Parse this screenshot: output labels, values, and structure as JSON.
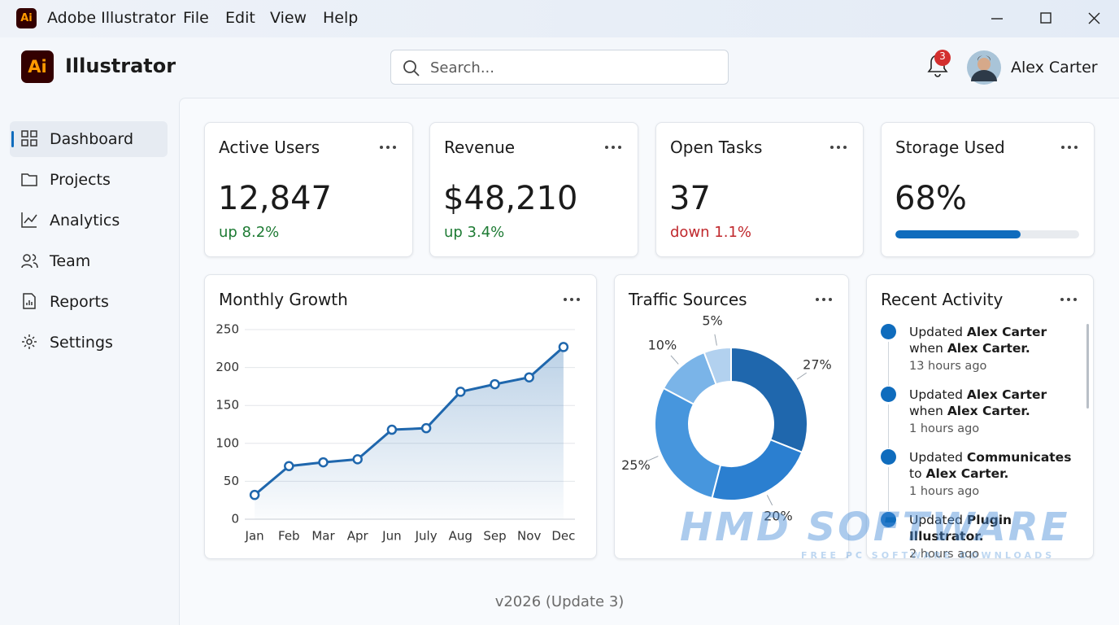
{
  "titlebar": {
    "app": "Adobe Illustrator",
    "menu": [
      "File",
      "Edit",
      "View",
      "Help"
    ]
  },
  "header": {
    "brand": "Illustrator",
    "search_placeholder": "Search...",
    "notifications": "3",
    "user": "Alex Carter"
  },
  "nav": [
    "Dashboard",
    "Projects",
    "Analytics",
    "Team",
    "Reports",
    "Settings"
  ],
  "stats": [
    {
      "title": "Active Users",
      "value": "12,847",
      "change": "up 8.2%",
      "change_color": "#1e7b34"
    },
    {
      "title": "Revenue",
      "value": "$48,210",
      "change": "up 3.4%",
      "change_color": "#1e7b34"
    },
    {
      "title": "Open Tasks",
      "value": "37",
      "change": "down 1.1%",
      "change_color": "#c0282d"
    },
    {
      "title": "Storage Used",
      "value": {
        "value": 68,
        "label": "68%"
      },
      "bar_color": "#0f6cbd"
    }
  ],
  "growth_chart": {
    "chart_data": {
      "type": "line",
      "title": "Monthly Growth",
      "categories": [
        "Jan",
        "Feb",
        "Mar",
        "Apr",
        "Jun",
        "July",
        "Aug",
        "Sep",
        "Nov",
        "Dec"
      ],
      "values": [
        32,
        70,
        75,
        79,
        118,
        120,
        168,
        178,
        187,
        227
      ],
      "color": "#1f67ad",
      "area": true,
      "ylim": [
        0,
        250
      ],
      "yticks": [
        0,
        50,
        100,
        150,
        200,
        250
      ],
      "grid": true
    }
  },
  "traffic_chart": {
    "chart_data": {
      "type": "donut",
      "title": "Traffic Sources",
      "values": [
        27,
        20,
        25,
        10,
        5
      ],
      "value_labels": [
        "27%",
        "20%",
        "25%",
        "10%",
        "5%"
      ],
      "colors": [
        "#1f67ad",
        "#2b7fd0",
        "#4796dd",
        "#7ab4e8",
        "#b2d1ef"
      ]
    }
  },
  "activity": {
    "title": "Recent Activity",
    "items": [
      {
        "action": "Updated",
        "subject": "Alex Carter",
        "relation": "when",
        "object": "Alex Carter.",
        "time": "13 hours ago"
      },
      {
        "action": "Updated",
        "subject": "Alex Carter",
        "relation": "when",
        "object": "Alex Carter.",
        "time": "1 hours ago"
      },
      {
        "action": "Updated",
        "subject": "Communicates",
        "relation": "to",
        "object": "Alex Carter.",
        "time": "1 hours ago"
      },
      {
        "action": "Updated",
        "subject": "Plugin Illustrator.",
        "time": "2 hours ago"
      }
    ]
  },
  "footer": {
    "version": "v2026 (Update 3)"
  },
  "watermark": {
    "name": "HMD SOFTWARE",
    "tagline": "FREE PC SOFTWARE DOWNLOADS"
  }
}
